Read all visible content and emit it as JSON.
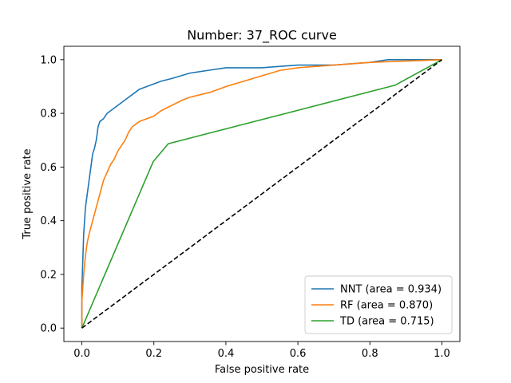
{
  "chart_data": {
    "type": "line",
    "title": "Number: 37_ROC curve",
    "xlabel": "False positive rate",
    "ylabel": "True positive rate",
    "xlim": [
      -0.05,
      1.05
    ],
    "ylim": [
      -0.05,
      1.05
    ],
    "xticks": [
      0.0,
      0.2,
      0.4,
      0.6,
      0.8,
      1.0
    ],
    "xtick_labels": [
      "0.0",
      "0.2",
      "0.4",
      "0.6",
      "0.8",
      "1.0"
    ],
    "yticks": [
      0.0,
      0.2,
      0.4,
      0.6,
      0.8,
      1.0
    ],
    "ytick_labels": [
      "0.0",
      "0.2",
      "0.4",
      "0.6",
      "0.8",
      "1.0"
    ],
    "grid": false,
    "legend_position": "lower-right",
    "series": [
      {
        "name": "NNT (area = 0.934)",
        "color": "#1f77b4",
        "style": "solid",
        "x": [
          0.0,
          0.0,
          0.003,
          0.005,
          0.008,
          0.01,
          0.015,
          0.02,
          0.025,
          0.03,
          0.035,
          0.04,
          0.045,
          0.05,
          0.06,
          0.07,
          0.08,
          0.09,
          0.1,
          0.12,
          0.14,
          0.16,
          0.18,
          0.2,
          0.22,
          0.25,
          0.3,
          0.35,
          0.4,
          0.5,
          0.55,
          0.6,
          0.7,
          0.8,
          0.85,
          1.0
        ],
        "y": [
          0.0,
          0.15,
          0.27,
          0.35,
          0.41,
          0.45,
          0.5,
          0.55,
          0.6,
          0.65,
          0.67,
          0.7,
          0.75,
          0.77,
          0.78,
          0.8,
          0.81,
          0.82,
          0.83,
          0.85,
          0.87,
          0.89,
          0.9,
          0.91,
          0.92,
          0.93,
          0.95,
          0.96,
          0.97,
          0.97,
          0.975,
          0.98,
          0.98,
          0.99,
          1.0,
          1.0
        ]
      },
      {
        "name": "RF (area = 0.870)",
        "color": "#ff7f0e",
        "style": "solid",
        "x": [
          0.0,
          0.0,
          0.005,
          0.01,
          0.015,
          0.02,
          0.03,
          0.04,
          0.05,
          0.06,
          0.07,
          0.08,
          0.09,
          0.1,
          0.11,
          0.12,
          0.13,
          0.14,
          0.16,
          0.18,
          0.2,
          0.22,
          0.25,
          0.28,
          0.3,
          0.33,
          0.36,
          0.4,
          0.45,
          0.5,
          0.55,
          0.6,
          0.7,
          0.8,
          1.0
        ],
        "y": [
          0.0,
          0.1,
          0.2,
          0.27,
          0.32,
          0.35,
          0.4,
          0.45,
          0.5,
          0.55,
          0.58,
          0.61,
          0.63,
          0.66,
          0.68,
          0.7,
          0.73,
          0.75,
          0.77,
          0.78,
          0.79,
          0.81,
          0.83,
          0.85,
          0.86,
          0.87,
          0.88,
          0.9,
          0.92,
          0.94,
          0.96,
          0.97,
          0.98,
          0.99,
          1.0
        ]
      },
      {
        "name": "TD (area = 0.715)",
        "color": "#2ca02c",
        "style": "solid",
        "x": [
          0.0,
          0.198,
          0.24,
          0.87,
          1.0
        ],
        "y": [
          0.0,
          0.62,
          0.687,
          0.905,
          1.0
        ]
      },
      {
        "name": "",
        "color": "#000000",
        "style": "dashed",
        "x": [
          0.0,
          1.0
        ],
        "y": [
          0.0,
          1.0
        ]
      }
    ]
  }
}
